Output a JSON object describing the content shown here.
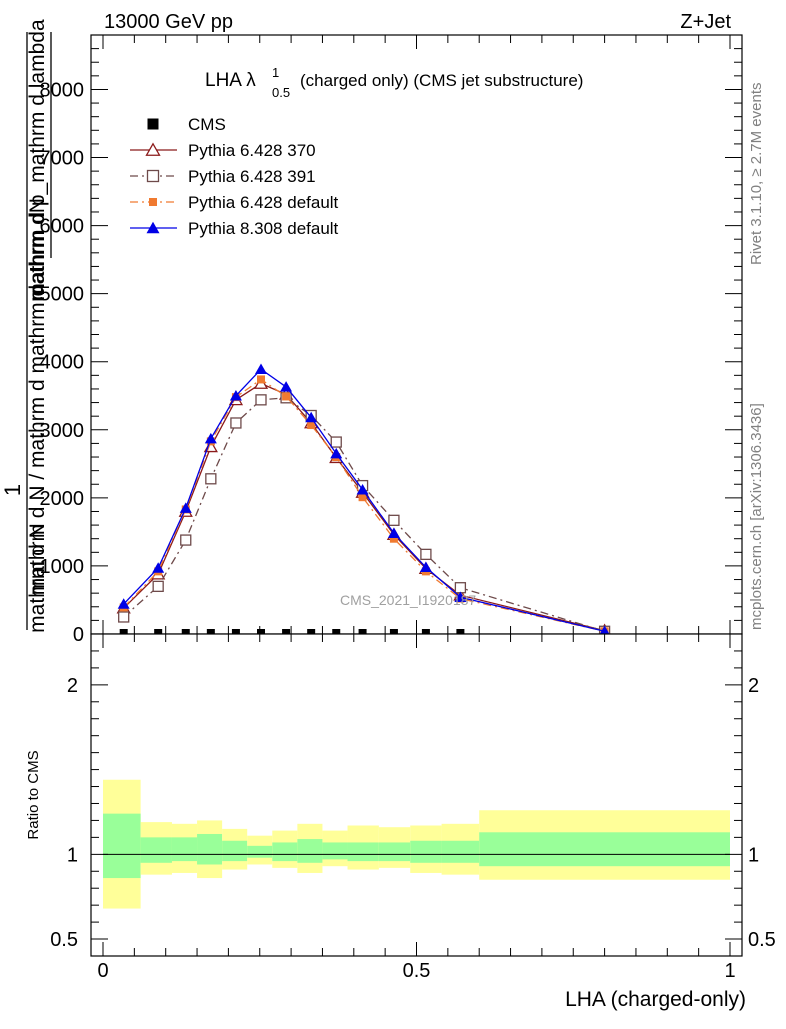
{
  "header": {
    "energy_label": "13000 GeV pp",
    "process_label": "Z+Jet"
  },
  "side_labels": {
    "rivet": "Rivet 3.1.10, ≥ 2.7M events",
    "mcplots": "mcplots.cern.ch [arXiv:1306.3436]"
  },
  "chart_data": [
    {
      "type": "line",
      "title_main": "LHA λ",
      "title_sup": "1",
      "title_sub": "0.5",
      "title_rest": "(charged only) (CMS jet substructure)",
      "watermark": "CMS_2021_I1920187",
      "ylabel_top": "mathrm dN",
      "ylabel_num_lower": "mathrm d p_mathrm d lambda",
      "ylabel_big1": "1",
      "ylabel_frac": "mathrm d N / mathrm d mathrm d",
      "ylabel_bottom": "mathrm d N",
      "xlim": [
        0,
        1
      ],
      "ylim": [
        0,
        8800
      ],
      "yticks": [
        0,
        1000,
        2000,
        3000,
        4000,
        5000,
        6000,
        7000,
        8000
      ],
      "yticklabels": [
        "0",
        "1000",
        "2000",
        "3000",
        "4000",
        "5000",
        "6000",
        "7000",
        "8000"
      ],
      "grid": false,
      "legend_position": "top-left",
      "x": [
        0.033,
        0.088,
        0.132,
        0.172,
        0.212,
        0.252,
        0.292,
        0.332,
        0.372,
        0.414,
        0.464,
        0.515,
        0.57,
        0.8
      ],
      "series": [
        {
          "name": "CMS",
          "color": "#000000",
          "marker": "square-filled",
          "line": "none",
          "values": [
            0,
            0,
            0,
            0,
            0,
            0,
            0,
            0,
            0,
            0,
            0,
            0,
            0,
            null
          ]
        },
        {
          "name": "Pythia 6.428 370",
          "color": "#8b1a1a",
          "marker": "triangle-open",
          "line": "solid",
          "values": [
            380,
            880,
            1800,
            2750,
            3440,
            3680,
            3520,
            3100,
            2590,
            2080,
            1460,
            960,
            570,
            50
          ]
        },
        {
          "name": "Pythia 6.428 391",
          "color": "#6e4a4a",
          "marker": "square-open",
          "line": "dashdot",
          "values": [
            250,
            700,
            1380,
            2280,
            3100,
            3440,
            3470,
            3210,
            2820,
            2180,
            1670,
            1170,
            680,
            40
          ]
        },
        {
          "name": "Pythia 6.428 default",
          "color": "#f07a30",
          "marker": "square-filled",
          "line": "dashdot",
          "values": [
            390,
            920,
            1830,
            2830,
            3480,
            3740,
            3490,
            3070,
            2600,
            2010,
            1400,
            920,
            520,
            40
          ]
        },
        {
          "name": "Pythia 8.308 default",
          "color": "#0000e6",
          "marker": "triangle-filled",
          "line": "solid",
          "values": [
            440,
            970,
            1850,
            2870,
            3500,
            3890,
            3630,
            3180,
            2650,
            2120,
            1480,
            980,
            540,
            40
          ]
        }
      ]
    },
    {
      "type": "area",
      "ylabel": "Ratio to CMS",
      "xlabel": "LHA (charged-only)",
      "xlim": [
        0,
        1
      ],
      "ylim": [
        0.4,
        2.3
      ],
      "yticks": [
        0.5,
        1,
        2
      ],
      "yticklabels": [
        "0.5",
        "1",
        "2"
      ],
      "xticks": [
        0,
        0.5,
        1
      ],
      "xticklabels": [
        "0",
        "0.5",
        "1"
      ],
      "reference_line": 1,
      "bin_edges": [
        0.0,
        0.06,
        0.11,
        0.15,
        0.19,
        0.23,
        0.27,
        0.31,
        0.35,
        0.39,
        0.44,
        0.49,
        0.54,
        0.6,
        1.0
      ],
      "inner_band": {
        "color": "#99ff99",
        "lower": [
          0.86,
          0.95,
          0.96,
          0.94,
          0.96,
          0.98,
          0.96,
          0.95,
          0.97,
          0.96,
          0.96,
          0.95,
          0.95,
          0.93
        ],
        "upper": [
          1.24,
          1.1,
          1.1,
          1.12,
          1.08,
          1.05,
          1.07,
          1.09,
          1.07,
          1.07,
          1.07,
          1.08,
          1.08,
          1.13
        ]
      },
      "outer_band": {
        "color": "#ffff99",
        "lower": [
          0.68,
          0.88,
          0.89,
          0.86,
          0.91,
          0.94,
          0.92,
          0.89,
          0.93,
          0.91,
          0.92,
          0.89,
          0.88,
          0.85
        ],
        "upper": [
          1.44,
          1.19,
          1.18,
          1.2,
          1.15,
          1.11,
          1.14,
          1.18,
          1.14,
          1.17,
          1.16,
          1.17,
          1.18,
          1.26
        ]
      }
    }
  ]
}
